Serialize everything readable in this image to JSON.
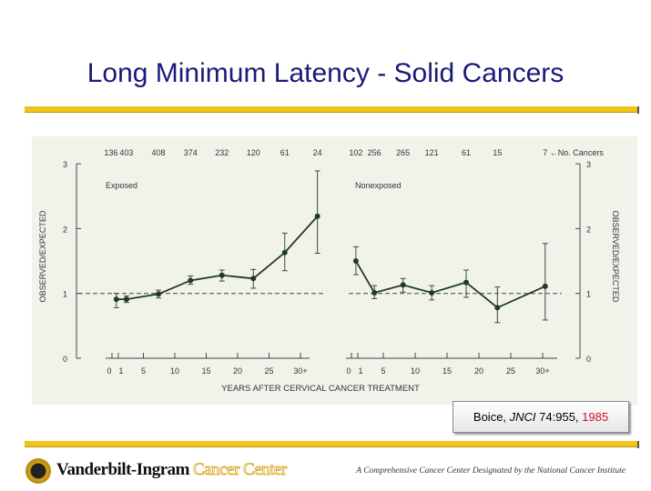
{
  "slide": {
    "title": "Long Minimum Latency - Solid Cancers",
    "citation": {
      "author": "Boice, ",
      "journal": "JNCI",
      "ref": " 74:955, ",
      "year": "1985"
    },
    "footer": {
      "org_name": "Vanderbilt-Ingram",
      "org_suffix": "Cancer Center",
      "tagline": "A Comprehensive Cancer Center Designated by the National Cancer Institute"
    },
    "colors": {
      "title": "#1a1a7a",
      "rule": "#f0c419",
      "year": "#d0102a",
      "series": "#1f3a26"
    }
  },
  "chart_data": {
    "type": "line",
    "xlabel": "YEARS AFTER CERVICAL CANCER TREATMENT",
    "ylabel": "OBSERVED/EXPECTED",
    "ylim": [
      0,
      3
    ],
    "yticks": [
      "0",
      "1",
      "2",
      "3"
    ],
    "xticks": [
      "0",
      "1",
      "5",
      "10",
      "15",
      "20",
      "25",
      "30+"
    ],
    "xtick_values": [
      0,
      1,
      5,
      10,
      15,
      20,
      25,
      30
    ],
    "reference_line": 1,
    "counts_label": "←No. Cancers",
    "panels": [
      {
        "name": "Exposed",
        "x": [
          0.7,
          2.3,
          7.4,
          12.5,
          17.5,
          22.5,
          27.5,
          32.7
        ],
        "values": [
          0.91,
          0.91,
          0.99,
          1.2,
          1.28,
          1.23,
          1.63,
          2.19
        ],
        "ci_low": [
          0.78,
          0.86,
          0.93,
          1.14,
          1.19,
          1.08,
          1.35,
          1.62
        ],
        "ci_high": [
          1.0,
          0.96,
          1.05,
          1.27,
          1.36,
          1.37,
          1.93,
          2.89
        ],
        "counts": [
          "136",
          "403",
          "408",
          "374",
          "232",
          "120",
          "61",
          "24"
        ]
      },
      {
        "name": "Nonexposed",
        "x": [
          0.7,
          3.6,
          8.1,
          12.6,
          18.0,
          22.9,
          30.4
        ],
        "values": [
          1.5,
          1.01,
          1.13,
          1.01,
          1.17,
          0.78,
          1.11
        ],
        "ci_low": [
          1.29,
          0.92,
          1.02,
          0.9,
          0.94,
          0.55,
          0.59
        ],
        "ci_high": [
          1.72,
          1.12,
          1.23,
          1.12,
          1.36,
          1.1,
          1.77
        ],
        "counts": [
          "102",
          "256",
          "265",
          "121",
          "61",
          "15",
          "7"
        ]
      }
    ]
  }
}
